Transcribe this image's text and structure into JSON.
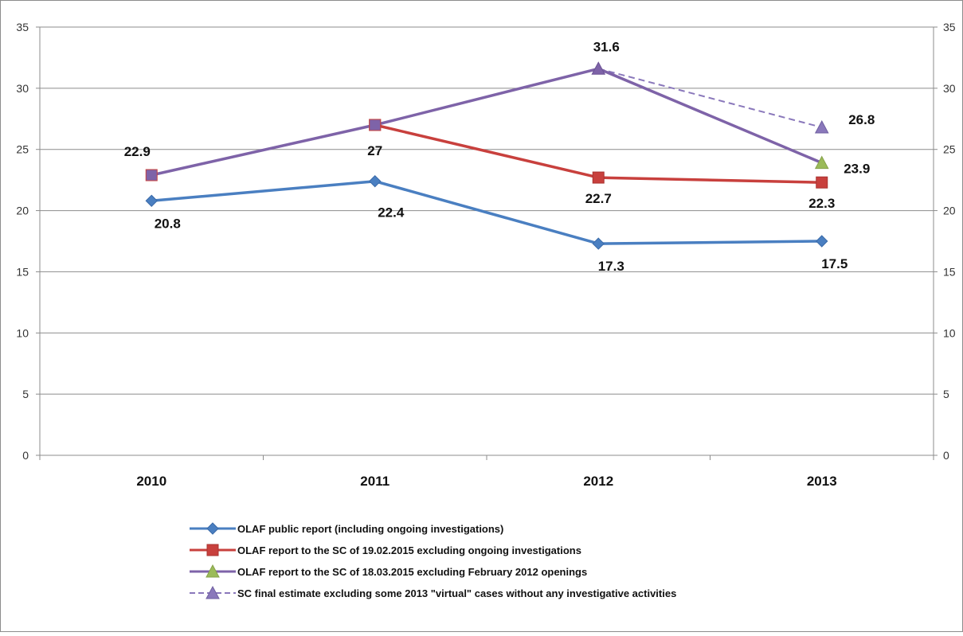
{
  "chart_data": {
    "type": "line",
    "categories": [
      "2010",
      "2011",
      "2012",
      "2013"
    ],
    "ylim": [
      0,
      35
    ],
    "yticks": [
      0,
      5,
      10,
      15,
      20,
      25,
      30,
      35
    ],
    "grid": true,
    "secondary_axis": true,
    "legend_position": "bottom",
    "series": [
      {
        "name": "OLAF public report (including ongoing investigations)",
        "values": [
          20.8,
          22.4,
          17.3,
          17.5
        ],
        "labels": [
          "20.8",
          "22.4",
          "17.3",
          "17.5"
        ],
        "color": "#4a7fc1",
        "marker": "diamond"
      },
      {
        "name": "OLAF report to the SC of 19.02.2015 excluding ongoing investigations",
        "values": [
          null,
          27,
          22.7,
          22.3
        ],
        "labels": [
          null,
          null,
          "22.7",
          "22.3"
        ],
        "color": "#c8403d",
        "marker": "square"
      },
      {
        "name": "OLAF report to the SC of 18.03.2015 excluding  February 2012 openings",
        "values": [
          22.9,
          27,
          31.6,
          23.9
        ],
        "labels": [
          "22.9",
          "27",
          "31.6",
          "23.9"
        ],
        "color": "#7e63a8",
        "marker_color": "#9bbb59",
        "marker": "triangle"
      },
      {
        "name": "SC final estimate excluding some 2013 \"virtual\" cases without any investigative activities",
        "values": [
          null,
          null,
          31.6,
          26.8
        ],
        "labels": [
          null,
          null,
          null,
          "26.8"
        ],
        "color": "#8a78bb",
        "dashed": true,
        "marker": "triangle"
      }
    ]
  }
}
